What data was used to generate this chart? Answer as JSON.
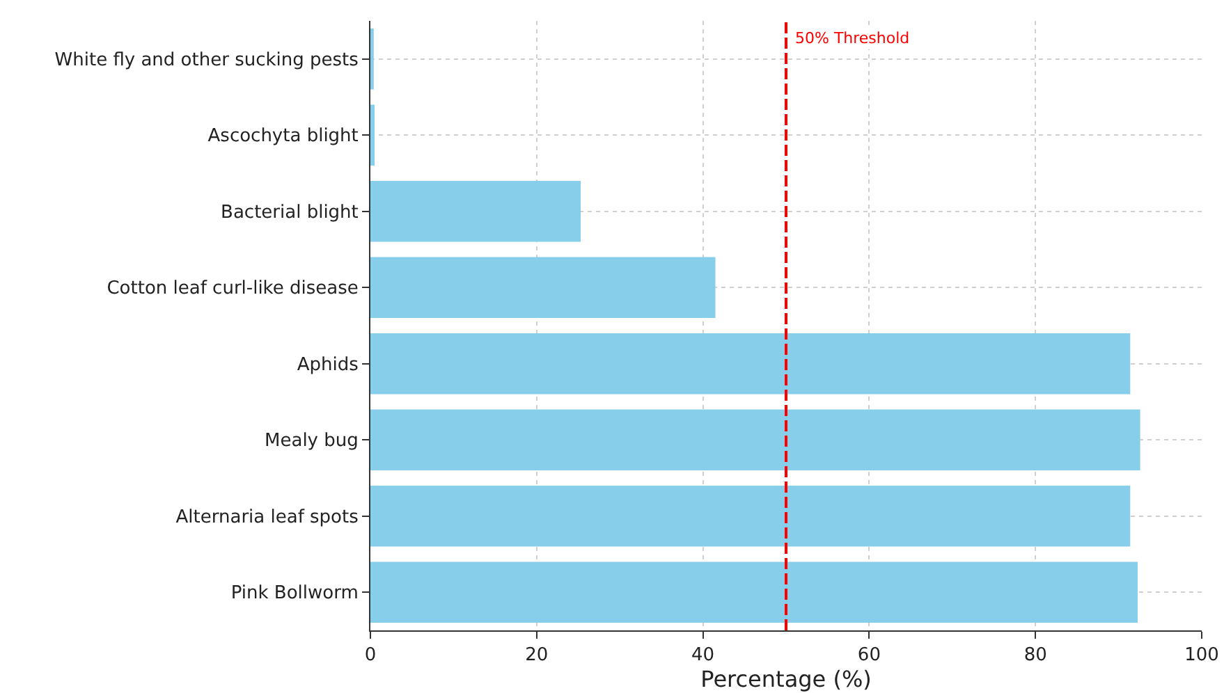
{
  "chart_data": {
    "type": "bar",
    "orientation": "horizontal",
    "xlabel": "Percentage (%)",
    "categories": [
      "White fly and other sucking pests",
      "Ascochyta blight",
      "Bacterial blight",
      "Cotton leaf curl-like disease",
      "Aphids",
      "Mealy bug",
      "Alternaria leaf spots",
      "Pink Bollworm"
    ],
    "values": [
      0.4,
      0.5,
      25.3,
      41.5,
      91.4,
      92.6,
      91.4,
      92.3
    ],
    "color": "#87ceeb",
    "xlim": [
      0,
      100
    ],
    "xticks": [
      0,
      20,
      40,
      60,
      80,
      100
    ],
    "ref_lines": [
      {
        "axis": "x",
        "value": 50,
        "label": "50% Threshold",
        "color": "#ff0000",
        "line_style": "dashed"
      }
    ],
    "grid": true
  }
}
